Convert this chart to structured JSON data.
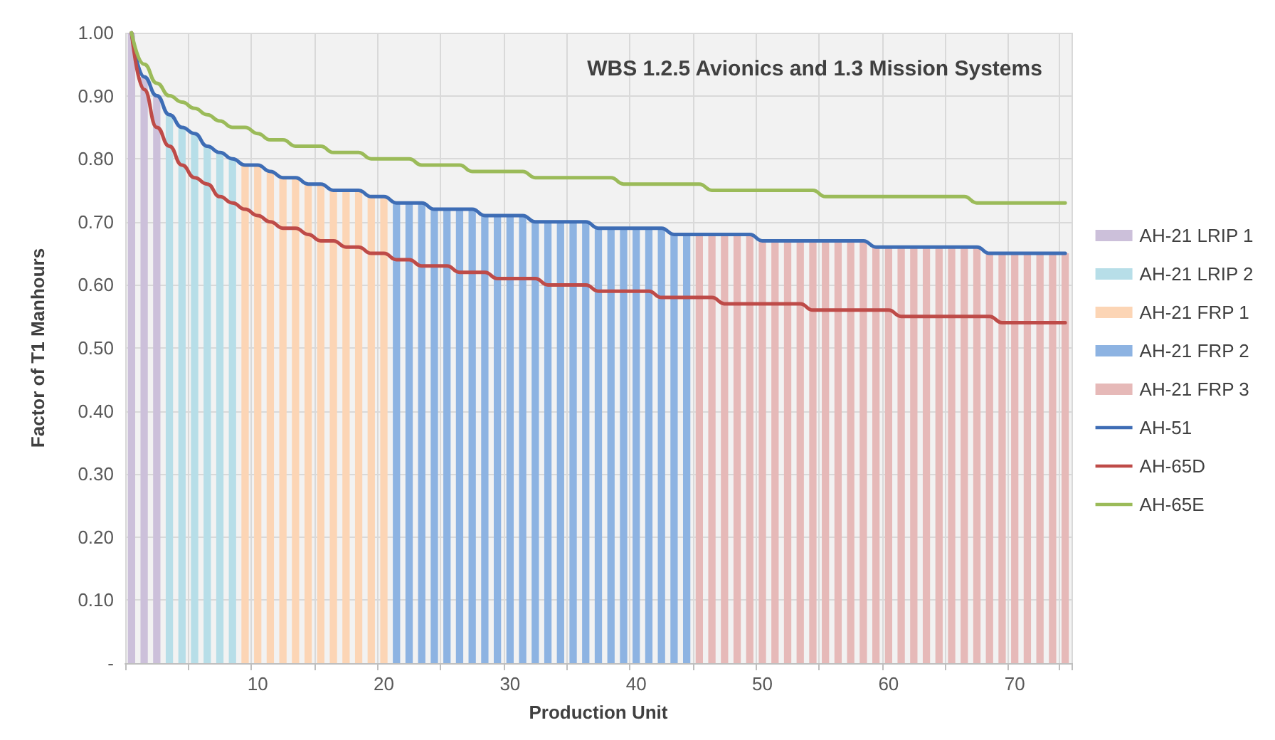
{
  "chart_data": {
    "type": "bar",
    "title": "WBS 1.2.5 Avionics and 1.3 Mission Systems",
    "xlabel": "Production Unit",
    "ylabel": "Factor of T1 Manhours",
    "categories": [
      null,
      null,
      null,
      null,
      null,
      null,
      null,
      null,
      null,
      null,
      "10",
      null,
      null,
      null,
      null,
      null,
      null,
      null,
      null,
      null,
      "20",
      null,
      null,
      null,
      null,
      null,
      null,
      null,
      null,
      null,
      "30",
      null,
      null,
      null,
      null,
      null,
      null,
      null,
      null,
      null,
      "40",
      null,
      null,
      null,
      null,
      null,
      null,
      null,
      null,
      null,
      "50",
      null,
      null,
      null,
      null,
      null,
      null,
      null,
      null,
      null,
      "60",
      null,
      null,
      null,
      null,
      null,
      null,
      null,
      null,
      null,
      "70",
      null,
      null,
      null,
      null
    ],
    "series": [
      {
        "name": "AH-21 LRIP 1",
        "color": "#ccc0da",
        "values": [
          1.0,
          0.93,
          0.9,
          null,
          null,
          null,
          null,
          null,
          null,
          null,
          null,
          null,
          null,
          null,
          null,
          null,
          null,
          null,
          null,
          null,
          null,
          null,
          null,
          null,
          null,
          null,
          null,
          null,
          null,
          null,
          null,
          null,
          null,
          null,
          null,
          null,
          null,
          null,
          null,
          null,
          null,
          null,
          null,
          null,
          null,
          null,
          null,
          null,
          null,
          null,
          null,
          null,
          null,
          null,
          null,
          null,
          null,
          null,
          null,
          null,
          null,
          null,
          null,
          null,
          null,
          null,
          null,
          null,
          null,
          null,
          null,
          null,
          null,
          null,
          null
        ]
      },
      {
        "name": "AH-21 LRIP 2",
        "color": "#b7dee8",
        "values": [
          null,
          null,
          null,
          0.87,
          0.85,
          0.84,
          0.82,
          0.81,
          0.8,
          null,
          null,
          null,
          null,
          null,
          null,
          null,
          null,
          null,
          null,
          null,
          null,
          null,
          null,
          null,
          null,
          null,
          null,
          null,
          null,
          null,
          null,
          null,
          null,
          null,
          null,
          null,
          null,
          null,
          null,
          null,
          null,
          null,
          null,
          null,
          null,
          null,
          null,
          null,
          null,
          null,
          null,
          null,
          null,
          null,
          null,
          null,
          null,
          null,
          null,
          null,
          null,
          null,
          null,
          null,
          null,
          null,
          null,
          null,
          null,
          null,
          null,
          null,
          null,
          null,
          null
        ]
      },
      {
        "name": "AH-21 FRP 1",
        "color": "#fcd5b5",
        "values": [
          null,
          null,
          null,
          null,
          null,
          null,
          null,
          null,
          null,
          0.79,
          0.79,
          0.78,
          0.77,
          0.77,
          0.76,
          0.76,
          0.75,
          0.75,
          0.75,
          0.74,
          0.74,
          null,
          null,
          null,
          null,
          null,
          null,
          null,
          null,
          null,
          null,
          null,
          null,
          null,
          null,
          null,
          null,
          null,
          null,
          null,
          null,
          null,
          null,
          null,
          null,
          null,
          null,
          null,
          null,
          null,
          null,
          null,
          null,
          null,
          null,
          null,
          null,
          null,
          null,
          null,
          null,
          null,
          null,
          null,
          null,
          null,
          null,
          null,
          null,
          null,
          null,
          null,
          null,
          null,
          null
        ]
      },
      {
        "name": "AH-21 FRP 2",
        "color": "#8db3e2",
        "values": [
          null,
          null,
          null,
          null,
          null,
          null,
          null,
          null,
          null,
          null,
          null,
          null,
          null,
          null,
          null,
          null,
          null,
          null,
          null,
          null,
          null,
          0.73,
          0.73,
          0.73,
          0.72,
          0.72,
          0.72,
          0.72,
          0.71,
          0.71,
          0.71,
          0.71,
          0.7,
          0.7,
          0.7,
          0.7,
          0.7,
          0.69,
          0.69,
          0.69,
          0.69,
          0.69,
          0.69,
          0.68,
          0.68,
          null,
          null,
          null,
          null,
          null,
          null,
          null,
          null,
          null,
          null,
          null,
          null,
          null,
          null,
          null,
          null,
          null,
          null,
          null,
          null,
          null,
          null,
          null,
          null,
          null,
          null,
          null,
          null,
          null,
          null
        ]
      },
      {
        "name": "AH-21 FRP 3",
        "color": "#e6b9b8",
        "values": [
          null,
          null,
          null,
          null,
          null,
          null,
          null,
          null,
          null,
          null,
          null,
          null,
          null,
          null,
          null,
          null,
          null,
          null,
          null,
          null,
          null,
          null,
          null,
          null,
          null,
          null,
          null,
          null,
          null,
          null,
          null,
          null,
          null,
          null,
          null,
          null,
          null,
          null,
          null,
          null,
          null,
          null,
          null,
          null,
          null,
          0.68,
          0.68,
          0.68,
          0.68,
          0.68,
          0.67,
          0.67,
          0.67,
          0.67,
          0.67,
          0.67,
          0.67,
          0.67,
          0.67,
          0.66,
          0.66,
          0.66,
          0.66,
          0.66,
          0.66,
          0.66,
          0.66,
          0.66,
          0.65,
          0.65,
          0.65,
          0.65,
          0.65,
          0.65,
          0.65
        ]
      },
      {
        "name": "AH-51",
        "type": "line",
        "color": "#3e6db5",
        "values": [
          1.0,
          0.93,
          0.9,
          0.87,
          0.85,
          0.84,
          0.82,
          0.81,
          0.8,
          0.79,
          0.79,
          0.78,
          0.77,
          0.77,
          0.76,
          0.76,
          0.75,
          0.75,
          0.75,
          0.74,
          0.74,
          0.73,
          0.73,
          0.73,
          0.72,
          0.72,
          0.72,
          0.72,
          0.71,
          0.71,
          0.71,
          0.71,
          0.7,
          0.7,
          0.7,
          0.7,
          0.7,
          0.69,
          0.69,
          0.69,
          0.69,
          0.69,
          0.69,
          0.68,
          0.68,
          0.68,
          0.68,
          0.68,
          0.68,
          0.68,
          0.67,
          0.67,
          0.67,
          0.67,
          0.67,
          0.67,
          0.67,
          0.67,
          0.67,
          0.66,
          0.66,
          0.66,
          0.66,
          0.66,
          0.66,
          0.66,
          0.66,
          0.66,
          0.65,
          0.65,
          0.65,
          0.65,
          0.65,
          0.65,
          0.65
        ]
      },
      {
        "name": "AH-65D",
        "type": "line",
        "color": "#be4b48",
        "values": [
          1.0,
          0.91,
          0.85,
          0.82,
          0.79,
          0.77,
          0.76,
          0.74,
          0.73,
          0.72,
          0.71,
          0.7,
          0.69,
          0.69,
          0.68,
          0.67,
          0.67,
          0.66,
          0.66,
          0.65,
          0.65,
          0.64,
          0.64,
          0.63,
          0.63,
          0.63,
          0.62,
          0.62,
          0.62,
          0.61,
          0.61,
          0.61,
          0.61,
          0.6,
          0.6,
          0.6,
          0.6,
          0.59,
          0.59,
          0.59,
          0.59,
          0.59,
          0.58,
          0.58,
          0.58,
          0.58,
          0.58,
          0.57,
          0.57,
          0.57,
          0.57,
          0.57,
          0.57,
          0.57,
          0.56,
          0.56,
          0.56,
          0.56,
          0.56,
          0.56,
          0.56,
          0.55,
          0.55,
          0.55,
          0.55,
          0.55,
          0.55,
          0.55,
          0.55,
          0.54,
          0.54,
          0.54,
          0.54,
          0.54,
          0.54
        ]
      },
      {
        "name": "AH-65E",
        "type": "line",
        "color": "#9bbb59",
        "values": [
          1.0,
          0.95,
          0.92,
          0.9,
          0.89,
          0.88,
          0.87,
          0.86,
          0.85,
          0.85,
          0.84,
          0.83,
          0.83,
          0.82,
          0.82,
          0.82,
          0.81,
          0.81,
          0.81,
          0.8,
          0.8,
          0.8,
          0.8,
          0.79,
          0.79,
          0.79,
          0.79,
          0.78,
          0.78,
          0.78,
          0.78,
          0.78,
          0.77,
          0.77,
          0.77,
          0.77,
          0.77,
          0.77,
          0.77,
          0.76,
          0.76,
          0.76,
          0.76,
          0.76,
          0.76,
          0.76,
          0.75,
          0.75,
          0.75,
          0.75,
          0.75,
          0.75,
          0.75,
          0.75,
          0.75,
          0.74,
          0.74,
          0.74,
          0.74,
          0.74,
          0.74,
          0.74,
          0.74,
          0.74,
          0.74,
          0.74,
          0.74,
          0.73,
          0.73,
          0.73,
          0.73,
          0.73,
          0.73,
          0.73,
          0.73
        ]
      }
    ],
    "ylim": [
      0,
      1
    ],
    "yticks": [
      {
        "value": 0,
        "label": "-"
      },
      {
        "value": 0.1,
        "label": "0.10"
      },
      {
        "value": 0.2,
        "label": "0.20"
      },
      {
        "value": 0.3,
        "label": "0.30"
      },
      {
        "value": 0.4,
        "label": "0.40"
      },
      {
        "value": 0.5,
        "label": "0.50"
      },
      {
        "value": 0.6,
        "label": "0.60"
      },
      {
        "value": 0.7,
        "label": "0.70"
      },
      {
        "value": 0.8,
        "label": "0.80"
      },
      {
        "value": 0.9,
        "label": "0.90"
      },
      {
        "value": 1,
        "label": "1.00"
      }
    ],
    "grid": true,
    "legend": "right",
    "marker": "none",
    "line_style": "solid"
  }
}
